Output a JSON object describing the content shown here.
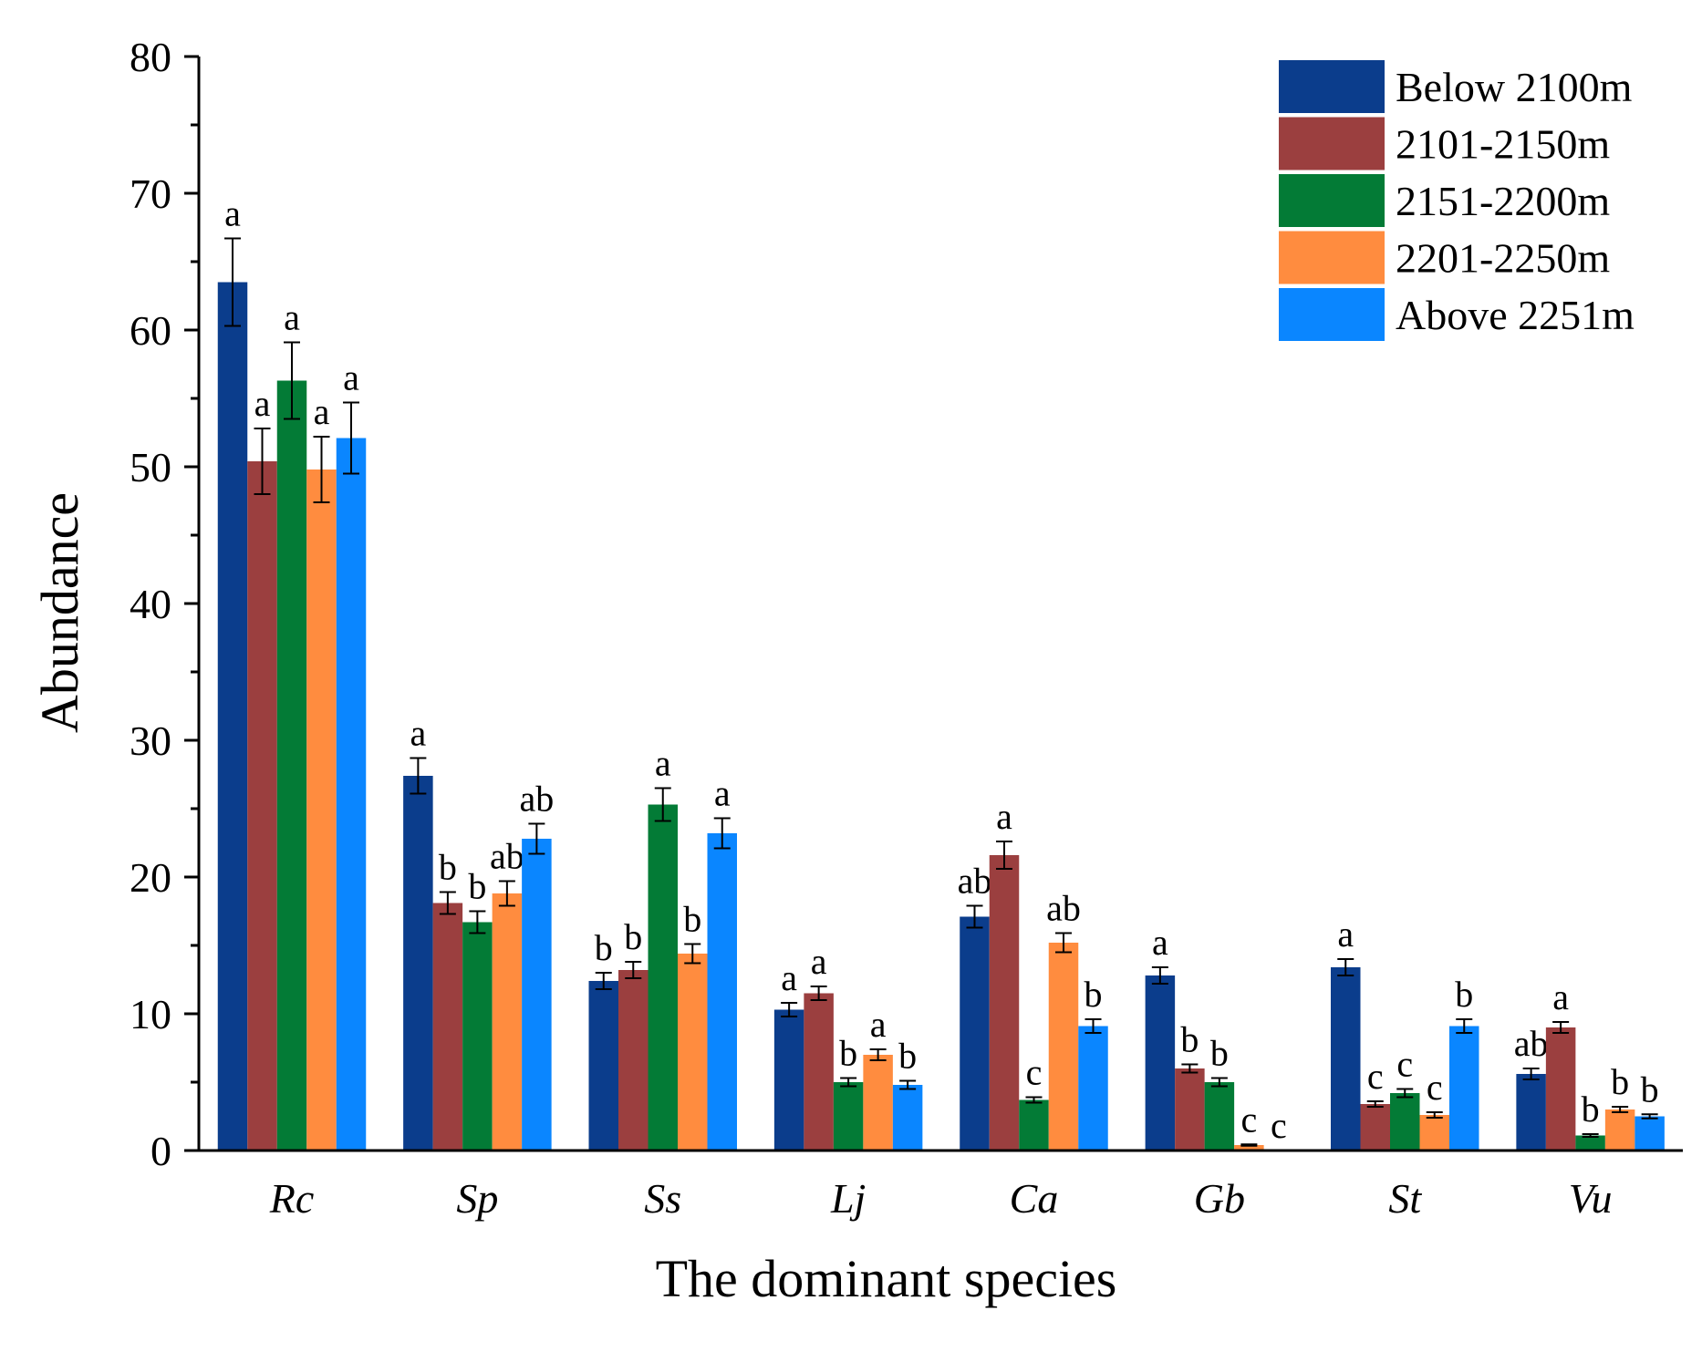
{
  "chart_data": {
    "type": "bar",
    "xlabel": "The dominant species",
    "ylabel": "Abundance",
    "ylim": [
      0,
      80
    ],
    "yticks": [
      0,
      10,
      20,
      30,
      40,
      50,
      60,
      70,
      80
    ],
    "categories": [
      "Rc",
      "Sp",
      "Ss",
      "Lj",
      "Ca",
      "Gb",
      "St",
      "Vu"
    ],
    "legend_position": "top-right",
    "series": [
      {
        "name": "Below 2100m",
        "color": "#0B3D8C",
        "values": [
          63.5,
          27.4,
          12.4,
          10.3,
          17.1,
          12.8,
          13.4,
          5.6
        ],
        "errors": [
          3.2,
          1.3,
          0.6,
          0.5,
          0.8,
          0.6,
          0.6,
          0.4
        ],
        "sig": [
          "a",
          "a",
          "b",
          "a",
          "ab",
          "a",
          "a",
          "ab"
        ]
      },
      {
        "name": "2101-2150m",
        "color": "#9B3F3F",
        "values": [
          50.4,
          18.1,
          13.2,
          11.5,
          21.6,
          6.0,
          3.4,
          9.0
        ],
        "errors": [
          2.4,
          0.8,
          0.6,
          0.5,
          1.0,
          0.3,
          0.2,
          0.4
        ],
        "sig": [
          "a",
          "b",
          "b",
          "a",
          "a",
          "b",
          "c",
          "a"
        ]
      },
      {
        "name": "2151-2200m",
        "color": "#037B36",
        "values": [
          56.3,
          16.7,
          25.3,
          5.0,
          3.7,
          5.0,
          4.2,
          1.1
        ],
        "errors": [
          2.8,
          0.8,
          1.2,
          0.3,
          0.2,
          0.3,
          0.3,
          0.1
        ],
        "sig": [
          "a",
          "b",
          "a",
          "b",
          "c",
          "b",
          "c",
          "b"
        ]
      },
      {
        "name": "2201-2250m",
        "color": "#FF8C3F",
        "values": [
          49.8,
          18.8,
          14.4,
          7.0,
          15.2,
          0.4,
          2.6,
          3.0
        ],
        "errors": [
          2.4,
          0.9,
          0.7,
          0.4,
          0.7,
          0.05,
          0.2,
          0.2
        ],
        "sig": [
          "a",
          "ab",
          "b",
          "a",
          "ab",
          "c",
          "c",
          "b"
        ]
      },
      {
        "name": "Above 2251m",
        "color": "#0A86FF",
        "values": [
          52.1,
          22.8,
          23.2,
          4.8,
          9.1,
          0.0,
          9.1,
          2.5
        ],
        "errors": [
          2.6,
          1.1,
          1.1,
          0.3,
          0.5,
          0.0,
          0.5,
          0.15
        ],
        "sig": [
          "a",
          "ab",
          "a",
          "b",
          "b",
          "c",
          "b",
          "b"
        ]
      }
    ]
  }
}
